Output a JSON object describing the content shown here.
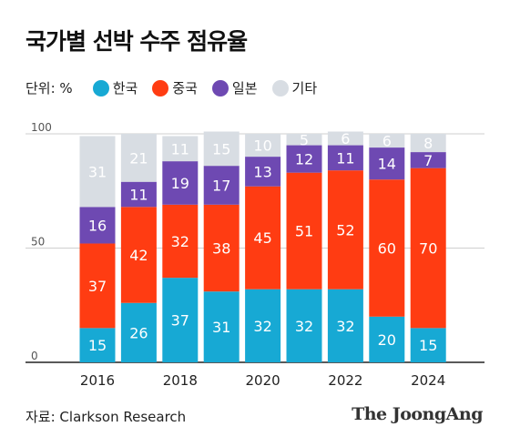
{
  "header": {
    "title": "국가별 선박 수주 점유율"
  },
  "legend": {
    "unit_label": "단위: %",
    "items": [
      {
        "label": "한국",
        "color": "#17a9d4"
      },
      {
        "label": "중국",
        "color": "#ff3c12"
      },
      {
        "label": "일본",
        "color": "#6e49b2"
      },
      {
        "label": "기타",
        "color": "#d8dde3"
      }
    ]
  },
  "footer": {
    "source": "자료: Clarkson Research",
    "logo": "The JoongAng"
  },
  "chart_data": {
    "type": "bar",
    "stacked": true,
    "categories": [
      "2016",
      "2017",
      "2018",
      "2019",
      "2020",
      "2021",
      "2022",
      "2023",
      "2024"
    ],
    "x_tick_labels": [
      "2016",
      "",
      "2018",
      "",
      "2020",
      "",
      "2022",
      "",
      "2024"
    ],
    "series": [
      {
        "name": "한국",
        "color": "#17a9d4",
        "values": [
          15,
          26,
          37,
          31,
          32,
          32,
          32,
          20,
          15
        ]
      },
      {
        "name": "중국",
        "color": "#ff3c12",
        "values": [
          37,
          42,
          32,
          38,
          45,
          51,
          52,
          60,
          70
        ]
      },
      {
        "name": "일본",
        "color": "#6e49b2",
        "values": [
          16,
          11,
          19,
          17,
          13,
          12,
          11,
          14,
          7
        ]
      },
      {
        "name": "기타",
        "color": "#d8dde3",
        "values": [
          31,
          21,
          11,
          15,
          10,
          5,
          6,
          6,
          8
        ]
      }
    ],
    "ylim": [
      0,
      100
    ],
    "y_ticks": [
      0,
      50,
      100
    ],
    "grid": true,
    "legend_position": "top-left"
  }
}
